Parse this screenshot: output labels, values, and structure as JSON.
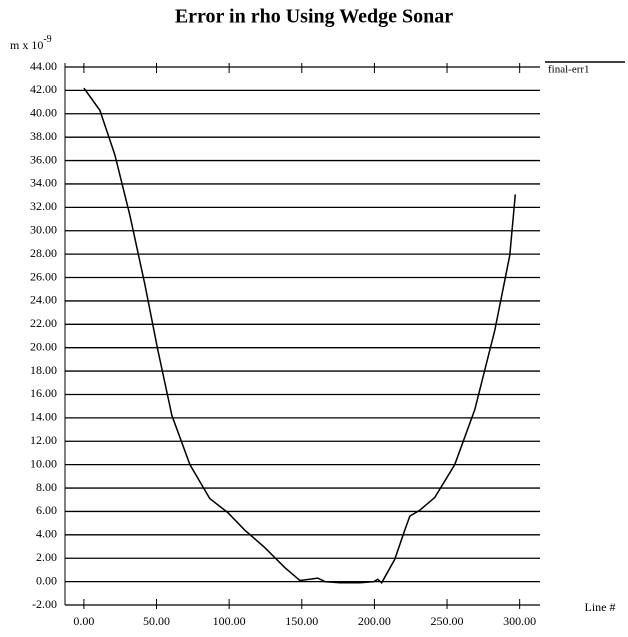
{
  "chart_data": {
    "type": "line",
    "title": "Error in rho Using Wedge Sonar",
    "ylabel_base": "m x 10",
    "ylabel_exponent": "-9",
    "xlabel": "Line #",
    "x": [
      0,
      11,
      21.3,
      31.7,
      42,
      50.9,
      60.6,
      73,
      86.7,
      99.1,
      110.8,
      124.6,
      138.3,
      148.7,
      155.5,
      161,
      165.9,
      176.2,
      190,
      199.6,
      202.3,
      205,
      214,
      220.9,
      224.4,
      231.2,
      241.6,
      255.3,
      269.1,
      282.9,
      293.2,
      297
    ],
    "series": [
      {
        "name": "final-err1",
        "color": "#000000",
        "values": [
          42.2,
          40.3,
          36.5,
          31.3,
          25.4,
          19.8,
          14.2,
          10.0,
          7.1,
          5.9,
          4.4,
          2.9,
          1.2,
          0.1,
          0.2,
          0.3,
          0,
          -0.1,
          -0.1,
          0,
          0.2,
          -0.1,
          1.9,
          4.4,
          5.6,
          6.1,
          7.2,
          10.0,
          14.7,
          21.5,
          27.9,
          33.1
        ]
      }
    ],
    "xlim": [
      -13,
      314
    ],
    "ylim": [
      -2,
      44
    ],
    "xticks": [
      {
        "value": 0,
        "label": "0.00"
      },
      {
        "value": 50,
        "label": "50.00"
      },
      {
        "value": 100,
        "label": "100.00"
      },
      {
        "value": 150,
        "label": "150.00"
      },
      {
        "value": 200,
        "label": "200.00"
      },
      {
        "value": 250,
        "label": "250.00"
      },
      {
        "value": 300,
        "label": "300.00"
      }
    ],
    "yticks": [
      {
        "value": -2,
        "label": "-2.00"
      },
      {
        "value": 0,
        "label": "0.00"
      },
      {
        "value": 2,
        "label": "2.00"
      },
      {
        "value": 4,
        "label": "4.00"
      },
      {
        "value": 6,
        "label": "6.00"
      },
      {
        "value": 8,
        "label": "8.00"
      },
      {
        "value": 10,
        "label": "10.00"
      },
      {
        "value": 12,
        "label": "12.00"
      },
      {
        "value": 14,
        "label": "14.00"
      },
      {
        "value": 16,
        "label": "16.00"
      },
      {
        "value": 18,
        "label": "18.00"
      },
      {
        "value": 20,
        "label": "20.00"
      },
      {
        "value": 22,
        "label": "22.00"
      },
      {
        "value": 24,
        "label": "24.00"
      },
      {
        "value": 26,
        "label": "26.00"
      },
      {
        "value": 28,
        "label": "28.00"
      },
      {
        "value": 30,
        "label": "30.00"
      },
      {
        "value": 32,
        "label": "32.00"
      },
      {
        "value": 34,
        "label": "34.00"
      },
      {
        "value": 36,
        "label": "36.00"
      },
      {
        "value": 38,
        "label": "38.00"
      },
      {
        "value": 40,
        "label": "40.00"
      },
      {
        "value": 42,
        "label": "42.00"
      },
      {
        "value": 44,
        "label": "44.00"
      }
    ],
    "grid": true,
    "legend": "top-right"
  }
}
